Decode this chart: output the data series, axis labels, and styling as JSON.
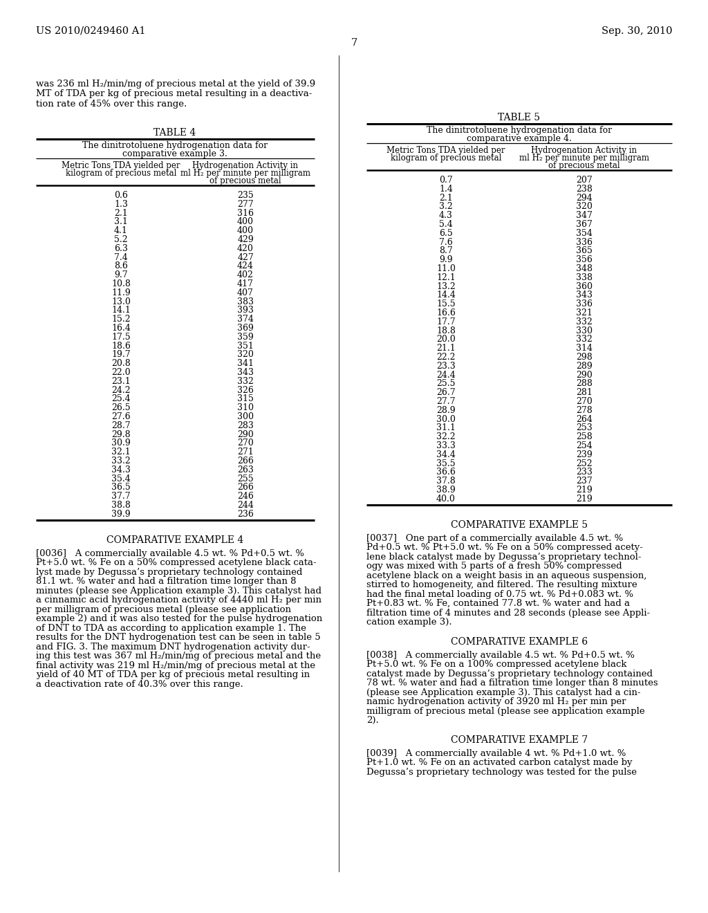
{
  "header_left": "US 2010/0249460 A1",
  "header_right": "Sep. 30, 2010",
  "page_number": "7",
  "table4_title": "TABLE 4",
  "table4_subtitle1": "The dinitrotoluene hydrogenation data for",
  "table4_subtitle2": "comparative example 3.",
  "table4_col1_header1": "Metric Tons TDA yielded per",
  "table4_col1_header2": "kilogram of precious metal",
  "table4_col2_header1": "Hydrogenation Activity in",
  "table4_col2_header2": "ml H₂ per minute per milligram",
  "table4_col2_header3": "of precious metal",
  "table4_data": [
    [
      0.6,
      235
    ],
    [
      1.3,
      277
    ],
    [
      2.1,
      316
    ],
    [
      3.1,
      400
    ],
    [
      4.1,
      400
    ],
    [
      5.2,
      429
    ],
    [
      6.3,
      420
    ],
    [
      7.4,
      427
    ],
    [
      8.6,
      424
    ],
    [
      9.7,
      402
    ],
    [
      10.8,
      417
    ],
    [
      11.9,
      407
    ],
    [
      13.0,
      383
    ],
    [
      14.1,
      393
    ],
    [
      15.2,
      374
    ],
    [
      16.4,
      369
    ],
    [
      17.5,
      359
    ],
    [
      18.6,
      351
    ],
    [
      19.7,
      320
    ],
    [
      20.8,
      341
    ],
    [
      22.0,
      343
    ],
    [
      23.1,
      332
    ],
    [
      24.2,
      326
    ],
    [
      25.4,
      315
    ],
    [
      26.5,
      310
    ],
    [
      27.6,
      300
    ],
    [
      28.7,
      283
    ],
    [
      29.8,
      290
    ],
    [
      30.9,
      270
    ],
    [
      32.1,
      271
    ],
    [
      33.2,
      266
    ],
    [
      34.3,
      263
    ],
    [
      35.4,
      255
    ],
    [
      36.5,
      266
    ],
    [
      37.7,
      246
    ],
    [
      38.8,
      244
    ],
    [
      39.9,
      236
    ]
  ],
  "table5_title": "TABLE 5",
  "table5_subtitle1": "The dinitrotoluene hydrogenation data for",
  "table5_subtitle2": "comparative example 4.",
  "table5_col1_header1": "Metric Tons TDA yielded per",
  "table5_col1_header2": "kilogram of precious metal",
  "table5_col2_header1": "Hydrogenation Activity in",
  "table5_col2_header2": "ml H₂ per minute per milligram",
  "table5_col2_header3": "of precious metal",
  "table5_data": [
    [
      0.7,
      207
    ],
    [
      1.4,
      238
    ],
    [
      2.1,
      294
    ],
    [
      3.2,
      320
    ],
    [
      4.3,
      347
    ],
    [
      5.4,
      367
    ],
    [
      6.5,
      354
    ],
    [
      7.6,
      336
    ],
    [
      8.7,
      365
    ],
    [
      9.9,
      356
    ],
    [
      11.0,
      348
    ],
    [
      12.1,
      338
    ],
    [
      13.2,
      360
    ],
    [
      14.4,
      343
    ],
    [
      15.5,
      336
    ],
    [
      16.6,
      321
    ],
    [
      17.7,
      332
    ],
    [
      18.8,
      330
    ],
    [
      20.0,
      332
    ],
    [
      21.1,
      314
    ],
    [
      22.2,
      298
    ],
    [
      23.3,
      289
    ],
    [
      24.4,
      290
    ],
    [
      25.5,
      288
    ],
    [
      26.7,
      281
    ],
    [
      27.7,
      270
    ],
    [
      28.9,
      278
    ],
    [
      30.0,
      264
    ],
    [
      31.1,
      253
    ],
    [
      32.2,
      258
    ],
    [
      33.3,
      254
    ],
    [
      34.4,
      239
    ],
    [
      35.5,
      252
    ],
    [
      36.6,
      233
    ],
    [
      37.8,
      237
    ],
    [
      38.9,
      219
    ],
    [
      40.0,
      219
    ]
  ],
  "intro_lines": [
    "was 236 ml H₂/min/mg of precious metal at the yield of 39.9",
    "MT of TDA per kg of precious metal resulting in a deactiva-",
    "tion rate of 45% over this range."
  ],
  "comp4_title": "COMPARATIVE EXAMPLE 4",
  "comp4_lines": [
    "[0036]   A commercially available 4.5 wt. % Pd+0.5 wt. %",
    "Pt+5.0 wt. % Fe on a 50% compressed acetylene black cata-",
    "lyst made by Degussa’s proprietary technology contained",
    "81.1 wt. % water and had a filtration time longer than 8",
    "minutes (please see Application example 3). This catalyst had",
    "a cinnamic acid hydrogenation activity of 4440 ml H₂ per min",
    "per milligram of precious metal (please see application",
    "example 2) and it was also tested for the pulse hydrogenation",
    "of DNT to TDA as according to application example 1. The",
    "results for the DNT hydrogenation test can be seen in table 5",
    "and FIG. 3. The maximum DNT hydrogenation activity dur-",
    "ing this test was 367 ml H₂/min/mg of precious metal and the",
    "final activity was 219 ml H₂/min/mg of precious metal at the",
    "yield of 40 MT of TDA per kg of precious metal resulting in",
    "a deactivation rate of 40.3% over this range."
  ],
  "comp5_title": "COMPARATIVE EXAMPLE 5",
  "comp5_lines": [
    "[0037]   One part of a commercially available 4.5 wt. %",
    "Pd+0.5 wt. % Pt+5.0 wt. % Fe on a 50% compressed acety-",
    "lene black catalyst made by Degussa’s proprietary technol-",
    "ogy was mixed with 5 parts of a fresh 50% compressed",
    "acetylene black on a weight basis in an aqueous suspension,",
    "stirred to homogeneity, and filtered. The resulting mixture",
    "had the final metal loading of 0.75 wt. % Pd+0.083 wt. %",
    "Pt+0.83 wt. % Fe, contained 77.8 wt. % water and had a",
    "filtration time of 4 minutes and 28 seconds (please see Appli-",
    "cation example 3)."
  ],
  "comp6_title": "COMPARATIVE EXAMPLE 6",
  "comp6_lines": [
    "[0038]   A commercially available 4.5 wt. % Pd+0.5 wt. %",
    "Pt+5.0 wt. % Fe on a 100% compressed acetylene black",
    "catalyst made by Degussa’s proprietary technology contained",
    "78 wt. % water and had a filtration time longer than 8 minutes",
    "(please see Application example 3). This catalyst had a cin-",
    "namic hydrogenation activity of 3920 ml H₂ per min per",
    "milligram of precious metal (please see application example",
    "2)."
  ],
  "comp7_title": "COMPARATIVE EXAMPLE 7",
  "comp7_lines": [
    "[0039]   A commercially available 4 wt. % Pd+1.0 wt. %",
    "Pt+1.0 wt. % Fe on an activated carbon catalyst made by",
    "Degussa’s proprietary technology was tested for the pulse"
  ]
}
